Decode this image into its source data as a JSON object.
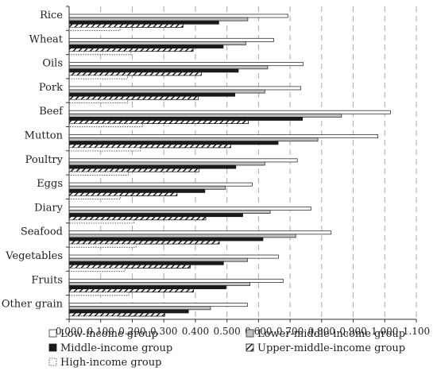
{
  "chart_data": {
    "type": "bar",
    "orientation": "horizontal",
    "categories": [
      "Rice",
      "Wheat",
      "Oils",
      "Pork",
      "Beef",
      "Mutton",
      "Poultry",
      "Eggs",
      "Diary",
      "Seafood",
      "Vegetables",
      "Fruits",
      "Other grain"
    ],
    "series": [
      {
        "name": "Low-income group",
        "color": "#ffffff",
        "pattern": "hollow",
        "values": [
          0.693,
          0.648,
          0.741,
          0.734,
          1.018,
          0.978,
          0.723,
          0.58,
          0.766,
          0.83,
          0.663,
          0.678,
          0.565
        ]
      },
      {
        "name": "Lower-middle-income group",
        "color": "#bfbfbf",
        "pattern": "solid-gray",
        "values": [
          0.566,
          0.56,
          0.629,
          0.62,
          0.863,
          0.788,
          0.62,
          0.495,
          0.637,
          0.718,
          0.565,
          0.573,
          0.448
        ]
      },
      {
        "name": "Middle-income group",
        "color": "#1a1a1a",
        "pattern": "solid-black",
        "values": [
          0.474,
          0.488,
          0.536,
          0.525,
          0.739,
          0.662,
          0.528,
          0.43,
          0.55,
          0.614,
          0.489,
          0.497,
          0.378
        ]
      },
      {
        "name": "Upper-middle-income group",
        "color": "#1a1a1a",
        "pattern": "diagonal",
        "values": [
          0.361,
          0.393,
          0.419,
          0.409,
          0.568,
          0.512,
          0.412,
          0.342,
          0.433,
          0.476,
          0.384,
          0.394,
          0.303
        ]
      },
      {
        "name": "High-income group",
        "color": "#ffffff",
        "pattern": "hollow-dotted",
        "values": [
          0.161,
          0.196,
          0.185,
          0.186,
          0.232,
          0.226,
          0.188,
          0.162,
          0.205,
          0.212,
          0.177,
          0.189,
          0.159
        ]
      }
    ],
    "xlim": [
      0,
      1.1
    ],
    "xticks": [
      "0.000",
      "0.100",
      "0.200",
      "0.300",
      "0.400",
      "0.500",
      "0.600",
      "0.700",
      "0.800",
      "0.900",
      "1.000",
      "1.100"
    ],
    "grid": "vertical dashed",
    "legend": {
      "placement": "bottom",
      "items": [
        "Low-income group",
        "Lower-middle-income group",
        "Middle-income group",
        "Upper-middle-income group",
        "High-income group"
      ]
    }
  }
}
